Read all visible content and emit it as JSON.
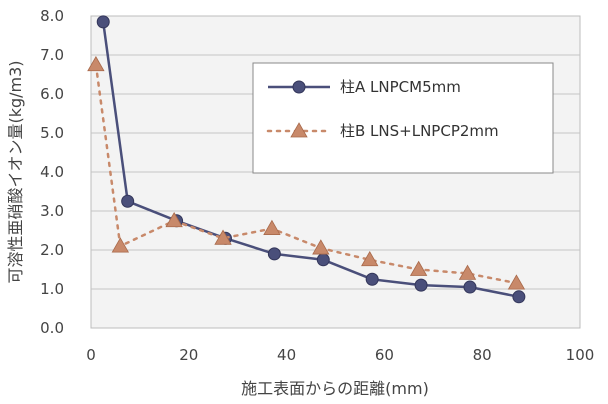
{
  "chart_data": {
    "type": "line",
    "xlabel": "施工表面からの距離(mm)",
    "ylabel": "可溶性亜硝酸イオン量(kg/m3)",
    "xlim": [
      0,
      100
    ],
    "ylim": [
      0,
      8
    ],
    "xticks": [
      0,
      20,
      40,
      60,
      80,
      100
    ],
    "yticks": [
      0.0,
      1.0,
      2.0,
      3.0,
      4.0,
      5.0,
      6.0,
      7.0,
      8.0
    ],
    "grid": "horizontal",
    "legend_position": "top-right",
    "series": [
      {
        "name": "柱A LNPCM5mm",
        "color": "#4a4f7a",
        "marker": "circle",
        "line_style": "solid",
        "x": [
          2.5,
          7.5,
          17.5,
          27.5,
          37.5,
          47.5,
          57.5,
          67.5,
          77.5,
          87.5
        ],
        "y": [
          7.85,
          3.25,
          2.75,
          2.3,
          1.9,
          1.75,
          1.25,
          1.1,
          1.05,
          0.8
        ]
      },
      {
        "name": "柱B LNS+LNPCP2mm",
        "color": "#c8896a",
        "marker": "triangle",
        "line_style": "dotted",
        "x": [
          1,
          6,
          17,
          27,
          37,
          47,
          57,
          67,
          77,
          87
        ],
        "y": [
          6.75,
          2.1,
          2.75,
          2.3,
          2.55,
          2.05,
          1.75,
          1.5,
          1.4,
          1.15
        ]
      }
    ]
  }
}
